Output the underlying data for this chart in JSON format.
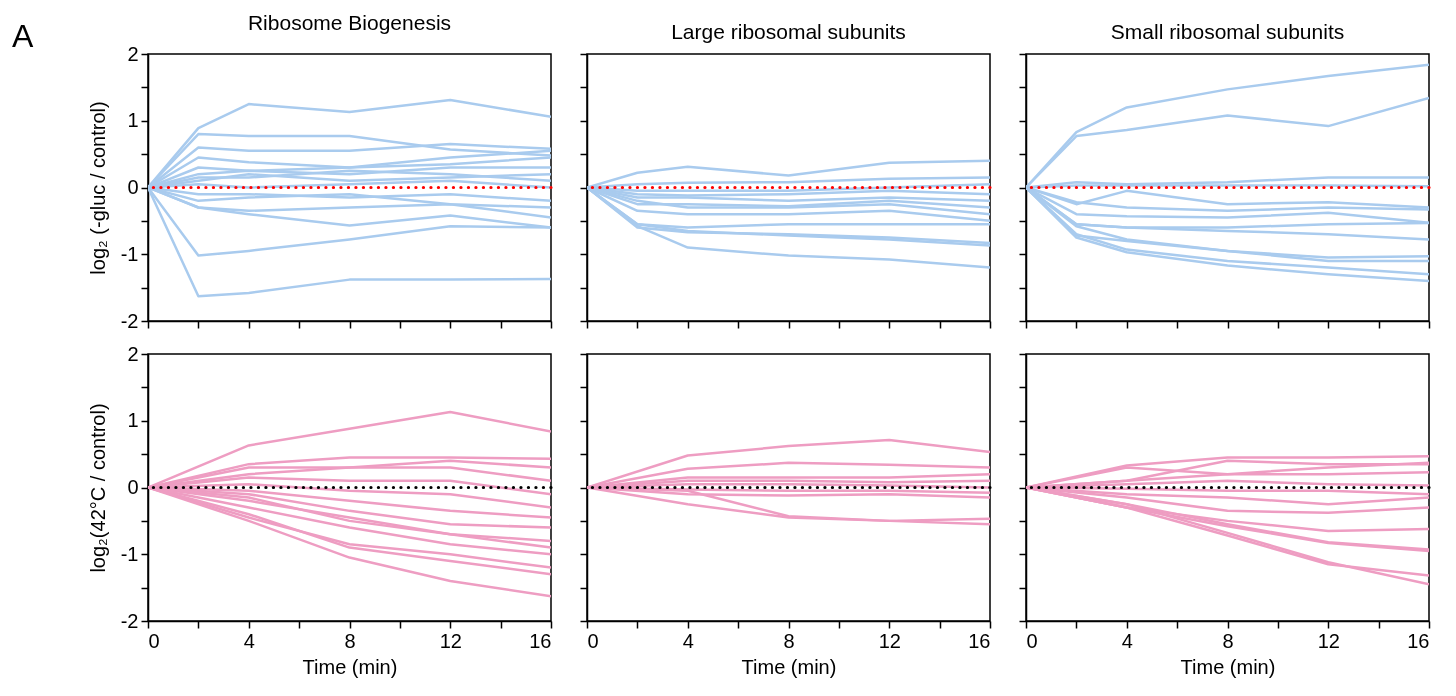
{
  "chart_data": [
    {
      "type": "line",
      "title": "Ribosome Biogenesis",
      "ylabel": "log₂ (-gluc / control)",
      "annotations": [
        "A"
      ],
      "tick_labels": "y",
      "x": [
        0,
        2,
        4,
        8,
        12,
        16
      ],
      "xlim": [
        0,
        16
      ],
      "xticks": [
        0,
        {
          "value": 2,
          "label": null
        },
        {
          "value": 4,
          "label": null
        },
        {
          "value": 6,
          "label": null
        },
        {
          "value": 8,
          "label": null
        },
        {
          "value": 10,
          "label": null
        },
        {
          "value": 12,
          "label": null
        },
        {
          "value": 14,
          "label": null
        },
        {
          "value": 16,
          "label": null
        }
      ],
      "ylim": [
        -2,
        2
      ],
      "yticks": [
        -2,
        {
          "value": -1.5,
          "label": null
        },
        -1,
        {
          "value": -0.5,
          "label": null
        },
        0,
        {
          "value": 0.5,
          "label": null
        },
        1,
        {
          "value": 1.5,
          "label": null
        },
        2
      ],
      "ref_lines": [
        {
          "axis": "y",
          "value": 0,
          "color": "#ff0000",
          "line_style": "dotted"
        }
      ],
      "series": [
        {
          "color": "#a9cbee",
          "values": [
            0,
            0.89,
            1.25,
            1.13,
            1.31,
            1.06
          ]
        },
        {
          "color": "#a9cbee",
          "values": [
            0,
            0.8,
            0.77,
            0.77,
            0.57,
            0.48
          ]
        },
        {
          "color": "#a9cbee",
          "values": [
            0,
            0.6,
            0.55,
            0.55,
            0.65,
            0.58
          ]
        },
        {
          "color": "#a9cbee",
          "values": [
            0,
            0.45,
            0.38,
            0.3,
            0.45,
            0.55
          ]
        },
        {
          "color": "#a9cbee",
          "values": [
            0,
            0.3,
            0.25,
            0.3,
            0.35,
            0.45
          ]
        },
        {
          "color": "#a9cbee",
          "values": [
            0,
            0.2,
            0.25,
            0.2,
            0.3,
            0.3
          ]
        },
        {
          "color": "#a9cbee",
          "values": [
            0,
            0.15,
            0.15,
            0.25,
            0.2,
            0.1
          ]
        },
        {
          "color": "#a9cbee",
          "values": [
            0,
            0.1,
            0.2,
            0.1,
            0.15,
            0.2
          ]
        },
        {
          "color": "#a9cbee",
          "values": [
            0,
            0.05,
            0,
            0.05,
            0.1,
            0
          ]
        },
        {
          "color": "#a9cbee",
          "values": [
            0,
            -0.1,
            -0.1,
            -0.15,
            -0.1,
            -0.2
          ]
        },
        {
          "color": "#a9cbee",
          "values": [
            0,
            -0.2,
            -0.15,
            -0.1,
            -0.25,
            -0.3
          ]
        },
        {
          "color": "#a9cbee",
          "values": [
            0,
            -0.3,
            -0.35,
            -0.3,
            -0.25,
            -0.45
          ]
        },
        {
          "color": "#a9cbee",
          "values": [
            0,
            -0.3,
            -0.4,
            -0.57,
            -0.42,
            -0.6
          ]
        },
        {
          "color": "#a9cbee",
          "values": [
            0,
            -1.02,
            -0.95,
            -0.78,
            -0.58,
            -0.6
          ]
        },
        {
          "color": "#a9cbee",
          "values": [
            0,
            -1.63,
            -1.58,
            -1.38,
            -1.38,
            -1.37
          ]
        }
      ]
    },
    {
      "type": "line",
      "title": "Large ribosomal subunits",
      "tick_labels": false,
      "x": [
        0,
        2,
        4,
        8,
        12,
        16
      ],
      "xlim": [
        0,
        16
      ],
      "xticks": [
        0,
        {
          "value": 2,
          "label": null
        },
        {
          "value": 4,
          "label": null
        },
        {
          "value": 6,
          "label": null
        },
        {
          "value": 8,
          "label": null
        },
        {
          "value": 10,
          "label": null
        },
        {
          "value": 12,
          "label": null
        },
        {
          "value": 14,
          "label": null
        },
        {
          "value": 16,
          "label": null
        }
      ],
      "ylim": [
        -2,
        2
      ],
      "yticks": [
        {
          "value": -2,
          "label": null
        },
        {
          "value": -1.5,
          "label": null
        },
        {
          "value": -1,
          "label": null
        },
        {
          "value": -0.5,
          "label": null
        },
        {
          "value": 0,
          "label": null
        },
        {
          "value": 0.5,
          "label": null
        },
        {
          "value": 1,
          "label": null
        },
        {
          "value": 1.5,
          "label": null
        },
        {
          "value": 2,
          "label": null
        }
      ],
      "ref_lines": [
        {
          "axis": "y",
          "value": 0,
          "color": "#ff0000",
          "line_style": "dotted"
        }
      ],
      "series": [
        {
          "color": "#a9cbee",
          "values": [
            0,
            0.22,
            0.31,
            0.18,
            0.37,
            0.4
          ]
        },
        {
          "color": "#a9cbee",
          "values": [
            0,
            0.05,
            0.07,
            0.08,
            0.13,
            0.15
          ]
        },
        {
          "color": "#a9cbee",
          "values": [
            0,
            -0.05,
            -0.05,
            -0.05,
            0,
            0.05
          ]
        },
        {
          "color": "#a9cbee",
          "values": [
            0,
            -0.1,
            -0.12,
            -0.1,
            -0.05,
            -0.1
          ]
        },
        {
          "color": "#a9cbee",
          "values": [
            0,
            -0.15,
            -0.15,
            -0.2,
            -0.15,
            -0.2
          ]
        },
        {
          "color": "#a9cbee",
          "values": [
            0,
            -0.2,
            -0.3,
            -0.3,
            -0.25,
            -0.4
          ]
        },
        {
          "color": "#a9cbee",
          "values": [
            0,
            -0.25,
            -0.25,
            -0.28,
            -0.2,
            -0.3
          ]
        },
        {
          "color": "#a9cbee",
          "values": [
            0,
            -0.35,
            -0.4,
            -0.4,
            -0.35,
            -0.5
          ]
        },
        {
          "color": "#a9cbee",
          "values": [
            0,
            -0.55,
            -0.6,
            -0.55,
            -0.55,
            -0.55
          ]
        },
        {
          "color": "#a9cbee",
          "values": [
            0,
            -0.6,
            -0.67,
            -0.7,
            -0.75,
            -0.83
          ]
        },
        {
          "color": "#a9cbee",
          "values": [
            0,
            -0.55,
            -0.65,
            -0.72,
            -0.78,
            -0.87
          ]
        },
        {
          "color": "#a9cbee",
          "values": [
            0,
            -0.58,
            -0.9,
            -1.02,
            -1.08,
            -1.2
          ]
        }
      ]
    },
    {
      "type": "line",
      "title": "Small ribosomal subunits",
      "tick_labels": false,
      "x": [
        0,
        2,
        4,
        8,
        12,
        16
      ],
      "xlim": [
        0,
        16
      ],
      "xticks": [
        0,
        {
          "value": 2,
          "label": null
        },
        {
          "value": 4,
          "label": null
        },
        {
          "value": 6,
          "label": null
        },
        {
          "value": 8,
          "label": null
        },
        {
          "value": 10,
          "label": null
        },
        {
          "value": 12,
          "label": null
        },
        {
          "value": 14,
          "label": null
        },
        {
          "value": 16,
          "label": null
        }
      ],
      "ylim": [
        -2,
        2
      ],
      "yticks": [
        {
          "value": -2,
          "label": null
        },
        {
          "value": -1.5,
          "label": null
        },
        {
          "value": -1,
          "label": null
        },
        {
          "value": -0.5,
          "label": null
        },
        {
          "value": 0,
          "label": null
        },
        {
          "value": 0.5,
          "label": null
        },
        {
          "value": 1,
          "label": null
        },
        {
          "value": 1.5,
          "label": null
        },
        {
          "value": 2,
          "label": null
        }
      ],
      "ref_lines": [
        {
          "axis": "y",
          "value": 0,
          "color": "#ff0000",
          "line_style": "dotted"
        }
      ],
      "series": [
        {
          "color": "#a9cbee",
          "values": [
            0,
            0.83,
            1.2,
            1.47,
            1.67,
            1.84
          ]
        },
        {
          "color": "#a9cbee",
          "values": [
            0,
            0.77,
            0.86,
            1.08,
            0.92,
            1.34
          ]
        },
        {
          "color": "#a9cbee",
          "values": [
            0,
            0.08,
            0.05,
            0.08,
            0.15,
            0.15
          ]
        },
        {
          "color": "#a9cbee",
          "values": [
            0,
            0.03,
            0.03,
            0.03,
            0.03,
            0.02
          ]
        },
        {
          "color": "#a9cbee",
          "values": [
            0,
            -0.25,
            -0.05,
            -0.25,
            -0.22,
            -0.3
          ]
        },
        {
          "color": "#a9cbee",
          "values": [
            0,
            -0.22,
            -0.3,
            -0.35,
            -0.3,
            -0.33
          ]
        },
        {
          "color": "#a9cbee",
          "values": [
            0,
            -0.4,
            -0.43,
            -0.45,
            -0.38,
            -0.53
          ]
        },
        {
          "color": "#a9cbee",
          "values": [
            0,
            -0.55,
            -0.6,
            -0.6,
            -0.55,
            -0.53
          ]
        },
        {
          "color": "#a9cbee",
          "values": [
            0,
            -0.55,
            -0.6,
            -0.65,
            -0.7,
            -0.78
          ]
        },
        {
          "color": "#a9cbee",
          "values": [
            0,
            -0.58,
            -0.78,
            -0.95,
            -1.1,
            -1.1
          ]
        },
        {
          "color": "#a9cbee",
          "values": [
            0,
            -0.72,
            -0.8,
            -0.95,
            -1.05,
            -1.03
          ]
        },
        {
          "color": "#a9cbee",
          "values": [
            0,
            -0.75,
            -0.97,
            -1.17,
            -1.3,
            -1.4
          ]
        },
        {
          "color": "#a9cbee",
          "values": [
            0,
            -0.7,
            -0.93,
            -1.1,
            -1.2,
            -1.3
          ]
        }
      ]
    },
    {
      "type": "line",
      "xlabel": "Time (min)",
      "ylabel": "log₂(42°C / control)",
      "x": [
        0,
        4,
        8,
        12,
        16
      ],
      "xlim": [
        0,
        16
      ],
      "xticks": [
        0,
        {
          "value": 2,
          "label": null
        },
        4,
        {
          "value": 6,
          "label": null
        },
        8,
        {
          "value": 10,
          "label": null
        },
        12,
        {
          "value": 14,
          "label": null
        },
        16
      ],
      "ylim": [
        -2,
        2
      ],
      "yticks": [
        -2,
        {
          "value": -1.5,
          "label": null
        },
        -1,
        {
          "value": -0.5,
          "label": null
        },
        0,
        {
          "value": 0.5,
          "label": null
        },
        1,
        {
          "value": 1.5,
          "label": null
        },
        2
      ],
      "ref_lines": [
        {
          "axis": "y",
          "value": 0,
          "color": "#000000",
          "line_style": "dotted"
        }
      ],
      "series": [
        {
          "color": "#ee9dc2",
          "values": [
            0,
            0.63,
            0.88,
            1.13,
            0.84
          ]
        },
        {
          "color": "#ee9dc2",
          "values": [
            0,
            0.35,
            0.45,
            0.45,
            0.43
          ]
        },
        {
          "color": "#ee9dc2",
          "values": [
            0,
            0.3,
            0.3,
            0.4,
            0.3
          ]
        },
        {
          "color": "#ee9dc2",
          "values": [
            0,
            0.2,
            0.3,
            0.3,
            0.1
          ]
        },
        {
          "color": "#ee9dc2",
          "values": [
            0,
            0.15,
            0.1,
            0.1,
            -0.1
          ]
        },
        {
          "color": "#ee9dc2",
          "values": [
            0,
            0.05,
            -0.05,
            -0.1,
            -0.3
          ]
        },
        {
          "color": "#ee9dc2",
          "values": [
            0,
            -0.05,
            -0.2,
            -0.35,
            -0.45
          ]
        },
        {
          "color": "#ee9dc2",
          "values": [
            0,
            -0.1,
            -0.35,
            -0.55,
            -0.6
          ]
        },
        {
          "color": "#ee9dc2",
          "values": [
            0,
            -0.2,
            -0.45,
            -0.7,
            -0.8
          ]
        },
        {
          "color": "#ee9dc2",
          "values": [
            0,
            -0.15,
            -0.5,
            -0.7,
            -0.9
          ]
        },
        {
          "color": "#ee9dc2",
          "values": [
            0,
            -0.3,
            -0.6,
            -0.85,
            -1
          ]
        },
        {
          "color": "#ee9dc2",
          "values": [
            0,
            -0.45,
            -0.85,
            -1,
            -1.2
          ]
        },
        {
          "color": "#ee9dc2",
          "values": [
            0,
            -0.4,
            -0.9,
            -1.1,
            -1.3
          ]
        },
        {
          "color": "#ee9dc2",
          "values": [
            0,
            -0.5,
            -1.05,
            -1.4,
            -1.63
          ]
        }
      ]
    },
    {
      "type": "line",
      "xlabel": "Time (min)",
      "tick_labels": "x",
      "x": [
        0,
        4,
        8,
        12,
        16
      ],
      "xlim": [
        0,
        16
      ],
      "xticks": [
        0,
        {
          "value": 2,
          "label": null
        },
        4,
        {
          "value": 6,
          "label": null
        },
        8,
        {
          "value": 10,
          "label": null
        },
        12,
        {
          "value": 14,
          "label": null
        },
        16
      ],
      "ylim": [
        -2,
        2
      ],
      "yticks": [
        {
          "value": -2,
          "label": null
        },
        {
          "value": -1.5,
          "label": null
        },
        {
          "value": -1,
          "label": null
        },
        {
          "value": -0.5,
          "label": null
        },
        {
          "value": 0,
          "label": null
        },
        {
          "value": 0.5,
          "label": null
        },
        {
          "value": 1,
          "label": null
        },
        {
          "value": 1.5,
          "label": null
        },
        {
          "value": 2,
          "label": null
        }
      ],
      "ref_lines": [
        {
          "axis": "y",
          "value": 0,
          "color": "#000000",
          "line_style": "dotted"
        }
      ],
      "series": [
        {
          "color": "#ee9dc2",
          "values": [
            0,
            0.48,
            0.62,
            0.71,
            0.53
          ]
        },
        {
          "color": "#ee9dc2",
          "values": [
            0,
            0.28,
            0.37,
            0.34,
            0.3
          ]
        },
        {
          "color": "#ee9dc2",
          "values": [
            0,
            0.15,
            0.15,
            0.15,
            0.2
          ]
        },
        {
          "color": "#ee9dc2",
          "values": [
            0,
            0.1,
            0.1,
            0.08,
            0.1
          ]
        },
        {
          "color": "#ee9dc2",
          "values": [
            0,
            0.05,
            0.05,
            0.03,
            0
          ]
        },
        {
          "color": "#ee9dc2",
          "values": [
            0,
            -0.03,
            -0.05,
            -0.05,
            -0.08
          ]
        },
        {
          "color": "#ee9dc2",
          "values": [
            0,
            -0.1,
            -0.12,
            -0.1,
            -0.15
          ]
        },
        {
          "color": "#ee9dc2",
          "values": [
            0,
            -0.05,
            -0.43,
            -0.5,
            -0.47
          ]
        },
        {
          "color": "#ee9dc2",
          "values": [
            0,
            -0.25,
            -0.45,
            -0.5,
            -0.55
          ]
        }
      ]
    },
    {
      "type": "line",
      "xlabel": "Time (min)",
      "tick_labels": "x",
      "x": [
        0,
        4,
        8,
        12,
        16
      ],
      "xlim": [
        0,
        16
      ],
      "xticks": [
        0,
        {
          "value": 2,
          "label": null
        },
        4,
        {
          "value": 6,
          "label": null
        },
        8,
        {
          "value": 10,
          "label": null
        },
        12,
        {
          "value": 14,
          "label": null
        },
        16
      ],
      "ylim": [
        -2,
        2
      ],
      "yticks": [
        {
          "value": -2,
          "label": null
        },
        {
          "value": -1.5,
          "label": null
        },
        {
          "value": -1,
          "label": null
        },
        {
          "value": -0.5,
          "label": null
        },
        {
          "value": 0,
          "label": null
        },
        {
          "value": 0.5,
          "label": null
        },
        {
          "value": 1,
          "label": null
        },
        {
          "value": 1.5,
          "label": null
        },
        {
          "value": 2,
          "label": null
        }
      ],
      "ref_lines": [
        {
          "axis": "y",
          "value": 0,
          "color": "#000000",
          "line_style": "dotted"
        }
      ],
      "series": [
        {
          "color": "#ee9dc2",
          "values": [
            0,
            0.33,
            0.45,
            0.45,
            0.47
          ]
        },
        {
          "color": "#ee9dc2",
          "values": [
            0,
            0.3,
            0.2,
            0.3,
            0.37
          ]
        },
        {
          "color": "#ee9dc2",
          "values": [
            0,
            0.1,
            0.4,
            0.35,
            0.35
          ]
        },
        {
          "color": "#ee9dc2",
          "values": [
            0,
            0.1,
            0.2,
            0.2,
            0.23
          ]
        },
        {
          "color": "#ee9dc2",
          "values": [
            0,
            0.05,
            0.1,
            0.05,
            0.03
          ]
        },
        {
          "color": "#ee9dc2",
          "values": [
            0,
            -0.02,
            -0.05,
            -0.05,
            -0.1
          ]
        },
        {
          "color": "#ee9dc2",
          "values": [
            0,
            -0.1,
            -0.15,
            -0.25,
            -0.15
          ]
        },
        {
          "color": "#ee9dc2",
          "values": [
            0,
            -0.15,
            -0.35,
            -0.38,
            -0.3
          ]
        },
        {
          "color": "#ee9dc2",
          "values": [
            0,
            -0.3,
            -0.5,
            -0.65,
            -0.62
          ]
        },
        {
          "color": "#ee9dc2",
          "values": [
            0,
            -0.25,
            -0.55,
            -0.82,
            -0.93
          ]
        },
        {
          "color": "#ee9dc2",
          "values": [
            0,
            -0.3,
            -0.58,
            -0.83,
            -0.95
          ]
        },
        {
          "color": "#ee9dc2",
          "values": [
            0,
            -0.3,
            -0.72,
            -1.15,
            -1.32
          ]
        },
        {
          "color": "#ee9dc2",
          "values": [
            0,
            -0.25,
            -0.68,
            -1.12,
            -1.45
          ]
        }
      ]
    }
  ]
}
